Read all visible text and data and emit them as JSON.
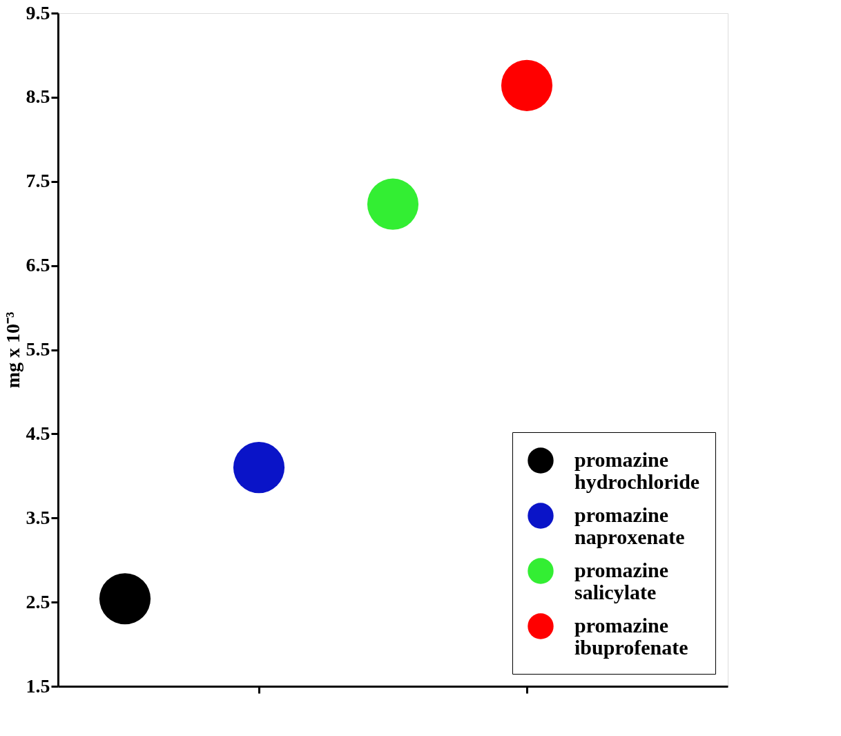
{
  "chart_data": {
    "type": "scatter",
    "ylabel": "mg x 10⁻³",
    "categories": [
      null,
      null,
      null,
      null,
      null
    ],
    "series": [
      {
        "name": "promazine hydrochloride",
        "color": "#000000",
        "values": [
          2.54,
          null,
          null,
          null,
          null
        ]
      },
      {
        "name": "promazine naproxenate",
        "color": "#0a14c8",
        "values": [
          null,
          4.1,
          null,
          null,
          null
        ]
      },
      {
        "name": "promazine salicylate",
        "color": "#33ee33",
        "values": [
          null,
          null,
          7.23,
          null,
          null
        ]
      },
      {
        "name": "promazine ibuprofenate",
        "color": "#ff0000",
        "values": [
          null,
          null,
          null,
          8.64,
          null
        ]
      }
    ],
    "ylim": [
      1.5,
      9.5
    ],
    "yticks": [
      1.5,
      2.5,
      3.5,
      4.5,
      5.5,
      6.5,
      7.5,
      8.5,
      9.5
    ],
    "marker": "circle",
    "grid": false,
    "legend": "bottom right"
  }
}
